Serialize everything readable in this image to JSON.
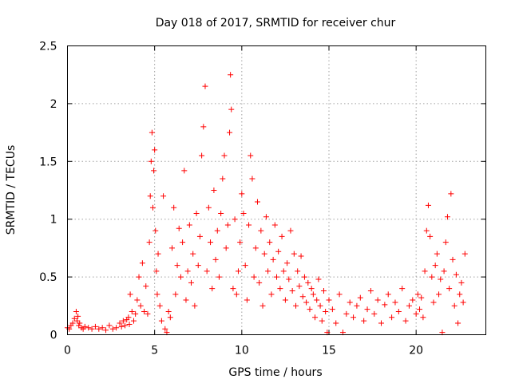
{
  "chart_data": {
    "type": "scatter",
    "title": "Day 018 of 2017, SRMTID for receiver chur",
    "xlabel": "GPS time / hours",
    "ylabel": "SRMTID / TECUs",
    "xlim": [
      0,
      24
    ],
    "ylim": [
      0,
      2.5
    ],
    "xticks": [
      0,
      5,
      10,
      15,
      20
    ],
    "xtick_labels": [
      "0",
      "5",
      "10",
      "15",
      "20"
    ],
    "yticks": [
      0,
      0.5,
      1,
      1.5,
      2,
      2.5
    ],
    "ytick_labels": [
      "0",
      "0.5",
      "1",
      "1.5",
      "2",
      "2.5"
    ],
    "grid": true,
    "marker": "+",
    "color": "#ff0000",
    "series": [
      {
        "name": "SRMTID",
        "x": [
          0.0,
          0.1,
          0.2,
          0.3,
          0.4,
          0.5,
          0.55,
          0.6,
          0.65,
          0.7,
          0.8,
          0.9,
          1.0,
          1.2,
          1.4,
          1.6,
          1.8,
          2.0,
          2.2,
          2.4,
          2.6,
          2.8,
          3.0,
          3.1,
          3.2,
          3.3,
          3.4,
          3.5,
          3.55,
          3.6,
          3.7,
          3.8,
          3.9,
          4.0,
          4.1,
          4.2,
          4.3,
          4.4,
          4.5,
          4.6,
          4.7,
          4.75,
          4.8,
          4.85,
          4.9,
          4.95,
          5.0,
          5.05,
          5.1,
          5.15,
          5.2,
          5.3,
          5.4,
          5.5,
          5.6,
          5.7,
          5.8,
          5.9,
          6.0,
          6.1,
          6.2,
          6.3,
          6.4,
          6.5,
          6.6,
          6.7,
          6.8,
          6.9,
          7.0,
          7.1,
          7.2,
          7.3,
          7.4,
          7.5,
          7.6,
          7.7,
          7.8,
          7.9,
          8.0,
          8.1,
          8.2,
          8.3,
          8.4,
          8.5,
          8.6,
          8.7,
          8.8,
          8.9,
          9.0,
          9.1,
          9.2,
          9.3,
          9.35,
          9.4,
          9.5,
          9.6,
          9.7,
          9.8,
          9.9,
          10.0,
          10.1,
          10.2,
          10.3,
          10.4,
          10.5,
          10.6,
          10.7,
          10.8,
          10.9,
          11.0,
          11.1,
          11.2,
          11.3,
          11.4,
          11.5,
          11.6,
          11.7,
          11.8,
          11.9,
          12.0,
          12.1,
          12.2,
          12.3,
          12.4,
          12.5,
          12.6,
          12.7,
          12.8,
          12.9,
          13.0,
          13.1,
          13.2,
          13.3,
          13.4,
          13.5,
          13.6,
          13.7,
          13.8,
          13.9,
          14.0,
          14.1,
          14.2,
          14.3,
          14.4,
          14.5,
          14.6,
          14.7,
          14.8,
          14.9,
          15.0,
          15.2,
          15.4,
          15.6,
          15.8,
          16.0,
          16.2,
          16.4,
          16.6,
          16.8,
          17.0,
          17.2,
          17.4,
          17.6,
          17.8,
          18.0,
          18.2,
          18.4,
          18.6,
          18.8,
          19.0,
          19.2,
          19.4,
          19.6,
          19.8,
          20.0,
          20.1,
          20.2,
          20.3,
          20.4,
          20.5,
          20.6,
          20.7,
          20.8,
          20.9,
          21.0,
          21.1,
          21.2,
          21.3,
          21.4,
          21.5,
          21.6,
          21.7,
          21.8,
          21.9,
          22.0,
          22.1,
          22.2,
          22.3,
          22.4,
          22.5,
          22.6,
          22.7,
          22.8
        ],
        "y": [
          0.06,
          0.05,
          0.08,
          0.1,
          0.14,
          0.2,
          0.12,
          0.16,
          0.08,
          0.1,
          0.06,
          0.05,
          0.07,
          0.06,
          0.05,
          0.07,
          0.05,
          0.06,
          0.04,
          0.08,
          0.05,
          0.06,
          0.1,
          0.07,
          0.12,
          0.08,
          0.13,
          0.15,
          0.09,
          0.35,
          0.2,
          0.12,
          0.18,
          0.3,
          0.5,
          0.25,
          0.62,
          0.2,
          0.42,
          0.18,
          0.8,
          1.2,
          1.5,
          1.75,
          1.1,
          1.42,
          1.6,
          0.9,
          0.55,
          0.35,
          0.7,
          0.25,
          0.12,
          1.2,
          0.05,
          0.02,
          0.2,
          0.15,
          0.75,
          1.1,
          0.35,
          0.6,
          0.92,
          0.5,
          0.8,
          1.42,
          0.3,
          0.55,
          0.95,
          0.45,
          0.7,
          0.25,
          1.05,
          0.6,
          0.85,
          1.55,
          1.8,
          2.15,
          0.55,
          1.1,
          0.8,
          0.4,
          1.25,
          0.65,
          0.9,
          0.5,
          1.05,
          1.35,
          1.55,
          0.75,
          0.95,
          1.75,
          2.25,
          1.95,
          0.4,
          1.0,
          0.35,
          0.55,
          0.8,
          1.22,
          1.05,
          0.6,
          0.3,
          0.95,
          1.55,
          1.35,
          0.5,
          0.75,
          1.15,
          0.45,
          0.9,
          0.25,
          0.7,
          1.02,
          0.55,
          0.8,
          0.35,
          0.65,
          0.95,
          0.5,
          0.72,
          0.4,
          0.85,
          0.55,
          0.3,
          0.62,
          0.48,
          0.9,
          0.38,
          0.7,
          0.25,
          0.55,
          0.42,
          0.68,
          0.33,
          0.5,
          0.28,
          0.45,
          0.22,
          0.4,
          0.35,
          0.15,
          0.3,
          0.48,
          0.25,
          0.12,
          0.38,
          0.2,
          0.02,
          0.3,
          0.22,
          0.1,
          0.35,
          0.02,
          0.18,
          0.28,
          0.15,
          0.25,
          0.32,
          0.12,
          0.22,
          0.38,
          0.18,
          0.3,
          0.1,
          0.26,
          0.35,
          0.15,
          0.28,
          0.2,
          0.4,
          0.12,
          0.25,
          0.3,
          0.18,
          0.35,
          0.22,
          0.32,
          0.15,
          0.55,
          0.9,
          1.12,
          0.85,
          0.5,
          0.28,
          0.6,
          0.7,
          0.35,
          0.48,
          0.02,
          0.55,
          0.8,
          1.02,
          0.4,
          1.22,
          0.65,
          0.25,
          0.52,
          0.1,
          0.35,
          0.45,
          0.28,
          0.7
        ]
      }
    ]
  }
}
